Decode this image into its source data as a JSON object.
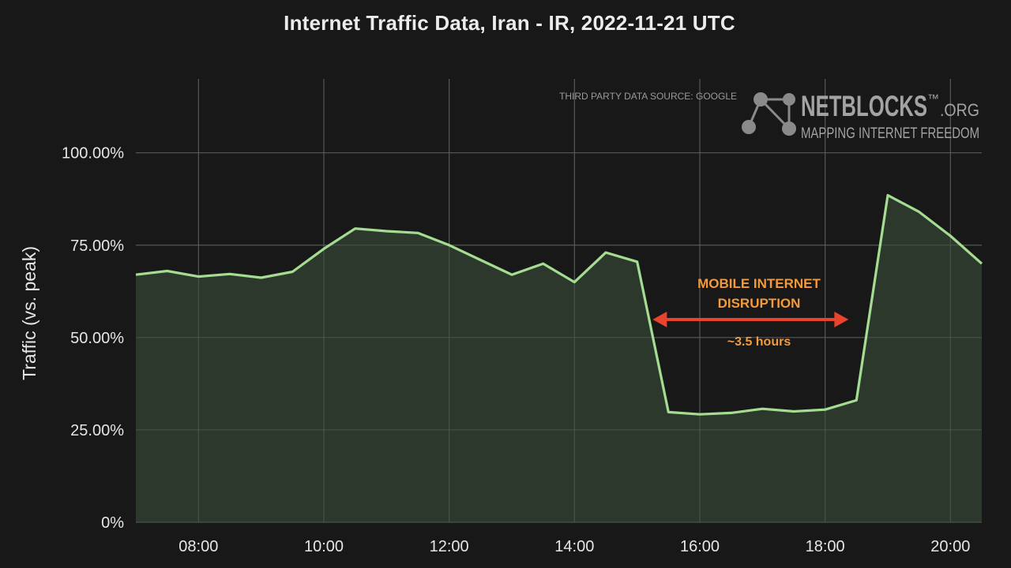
{
  "chart_data": {
    "type": "area",
    "title": "Internet Traffic Data, Iran - IR, 2022-11-21 UTC",
    "ylabel": "Traffic (vs. peak)",
    "xlabel": "",
    "x_ticks": [
      "08:00",
      "10:00",
      "12:00",
      "14:00",
      "16:00",
      "18:00",
      "20:00"
    ],
    "y_ticks": [
      "0%",
      "25.00%",
      "50.00%",
      "75.00%",
      "100.00%"
    ],
    "y_tick_values": [
      0,
      25,
      50,
      75,
      100
    ],
    "x_tick_hours": [
      8,
      10,
      12,
      14,
      16,
      18,
      20
    ],
    "xlim": [
      7.0,
      20.5
    ],
    "ylim": [
      0,
      120
    ],
    "grid": true,
    "series": [
      {
        "x": [
          7.0,
          7.5,
          8.0,
          8.5,
          9.0,
          9.5,
          10.0,
          10.5,
          11.0,
          11.5,
          12.0,
          12.5,
          13.0,
          13.5,
          14.0,
          14.5,
          15.0,
          15.5,
          16.0,
          16.5,
          17.0,
          17.5,
          18.0,
          18.5,
          19.0,
          19.5,
          20.0,
          20.5
        ],
        "y": [
          67,
          68,
          66.5,
          67.2,
          66.2,
          67.8,
          74,
          79.5,
          78.8,
          78.3,
          75,
          71,
          67,
          70,
          65,
          73,
          70.5,
          29.8,
          29.2,
          29.6,
          30.7,
          30,
          30.5,
          33,
          88.5,
          84,
          77.5,
          70
        ]
      }
    ],
    "colors": {
      "line": "#a4dc92",
      "fill": "#303c30",
      "background": "#181818",
      "grid": "#4a4a4a",
      "arrow": "#e8432c",
      "annotation": "#f29a3c"
    },
    "annotations": {
      "line1": "MOBILE INTERNET",
      "line2": "DISRUPTION",
      "duration": "~3.5 hours",
      "arrow_start_hour": 15.5,
      "arrow_end_hour": 18.5
    }
  },
  "watermark": {
    "source": "THIRD PARTY DATA SOURCE: GOOGLE",
    "brand": "NETBLOCKS",
    "brand_tm": "™",
    "brand_org": ".ORG",
    "tagline": "MAPPING INTERNET FREEDOM",
    "icon": "netblocks-network-logo"
  }
}
